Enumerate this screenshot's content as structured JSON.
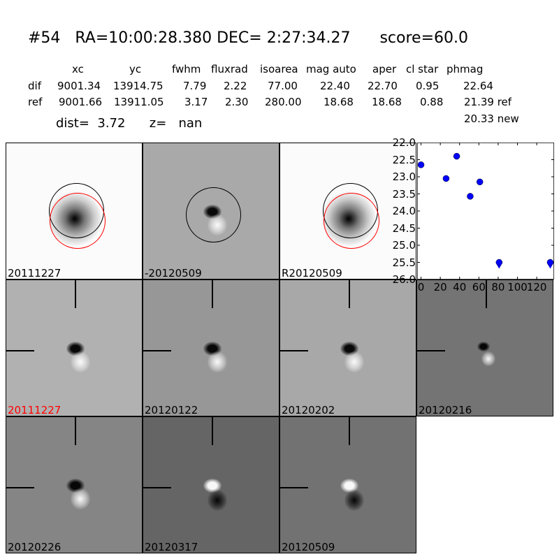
{
  "title": "#54   RA=10:00:28.380 DEC= 2:27:34.27      score=60.0",
  "table": {
    "headers": [
      "xc",
      "yc",
      "fwhm",
      "fluxrad",
      "isoarea",
      "mag auto",
      "aper",
      "cl star",
      "phmag"
    ],
    "rows": [
      {
        "name": "dif",
        "values": [
          "9001.34",
          "13914.75",
          "7.79",
          "2.22",
          "77.00",
          "22.40",
          "22.70",
          "0.95",
          "22.64"
        ]
      },
      {
        "name": "ref",
        "values": [
          "9001.66",
          "13911.05",
          "3.17",
          "2.30",
          "280.00",
          "18.68",
          "18.68",
          "0.88",
          "21.39 ref"
        ]
      }
    ],
    "extra": "20.33 new"
  },
  "dist_line": "dist=  3.72      z=   nan",
  "stamps": [
    {
      "label": "20111227",
      "label_color": "#000000",
      "bg": "#fbfbfb",
      "kind": "star-circles"
    },
    {
      "label": "-20120509",
      "label_color": "#000000",
      "bg": "#a9a9a9",
      "kind": "dipole-circle"
    },
    {
      "label": "R20120509",
      "label_color": "#000000",
      "bg": "#fbfbfb",
      "kind": "star-circles"
    },
    {
      "label": "20111227",
      "label_color": "#ff0000",
      "bg": "#b1b1b1",
      "kind": "dipole"
    },
    {
      "label": "20120122",
      "label_color": "#000000",
      "bg": "#979797",
      "kind": "dipole"
    },
    {
      "label": "20120202",
      "label_color": "#000000",
      "bg": "#a8a8a8",
      "kind": "dipole"
    },
    {
      "label": "20120216",
      "label_color": "#000000",
      "bg": "#747474",
      "kind": "dipole-small"
    },
    {
      "label": "20120226",
      "label_color": "#000000",
      "bg": "#858585",
      "kind": "dipole"
    },
    {
      "label": "20120317",
      "label_color": "#000000",
      "bg": "#656565",
      "kind": "dipole-inv"
    },
    {
      "label": "20120509",
      "label_color": "#000000",
      "bg": "#727272",
      "kind": "dipole-inv"
    }
  ],
  "chart_data": {
    "type": "scatter",
    "x": [
      0,
      26,
      37,
      51,
      61,
      81,
      134
    ],
    "y": [
      22.65,
      23.05,
      22.4,
      23.57,
      23.15,
      25.5,
      25.5
    ],
    "upper_limit": [
      false,
      false,
      false,
      false,
      false,
      true,
      true
    ],
    "xlim": [
      -4,
      138
    ],
    "ylim": [
      26.0,
      22.0
    ],
    "y_inverted": true,
    "xticks": [
      "0",
      "20",
      "40",
      "60",
      "80",
      "100",
      "120"
    ],
    "xtick_values": [
      0,
      20,
      40,
      60,
      80,
      100,
      120
    ],
    "yticks": [
      "22.0",
      "22.5",
      "23.0",
      "23.5",
      "24.0",
      "24.5",
      "25.0",
      "25.5",
      "26.0"
    ],
    "ytick_values": [
      22.0,
      22.5,
      23.0,
      23.5,
      24.0,
      24.5,
      25.0,
      25.5,
      26.0
    ],
    "marker_color": "#0000ff",
    "grid": false
  }
}
